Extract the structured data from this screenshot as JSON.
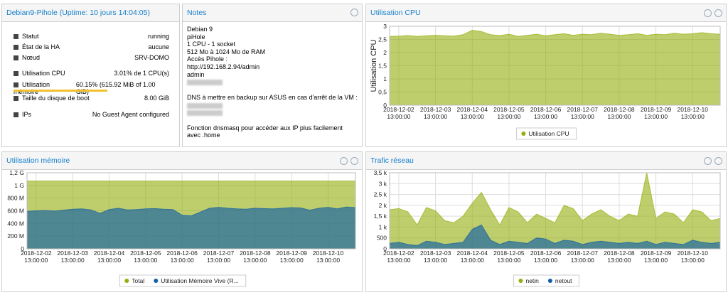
{
  "status": {
    "title": "Debian9-Pihole (Uptime: 10 jours 14:04:05)",
    "rows": [
      {
        "label": "Statut",
        "value": "running"
      },
      {
        "label": "État de la HA",
        "value": "aucune"
      },
      {
        "label": "Nœud",
        "value": "SRV-DOMO"
      },
      {
        "label": "Utilisation CPU",
        "value": "3.01% de 1 CPU(s)"
      },
      {
        "label": "Utilisation mémoire",
        "value": "60.15% (615.92 MiB of 1.00 GiB)"
      },
      {
        "label": "Taille du disque de boot",
        "value": "8.00 GiB"
      },
      {
        "label": "IPs",
        "value": "No Guest Agent configured"
      }
    ],
    "memory_percent": 60.15
  },
  "notes": {
    "title": "Notes",
    "lines": [
      "Debian 9",
      "piHole",
      "1 CPU - 1 socket",
      "512 Mo à 1024 Mo de RAM",
      "Accès Pihole :",
      "http://192.168.2.94/admin",
      "admin",
      "DNS à mettre en backup sur ASUS en cas d'arrêt de la VM :",
      "Fonction dnsmasq pour accéder aux IP plus facilement",
      "avec .home"
    ]
  },
  "chart_data": [
    {
      "type": "area",
      "title": "Utilisation CPU",
      "y_label": "Utilisation CPU",
      "categories": [
        null,
        "2018-12-02 13:00:00",
        null,
        null,
        null,
        "2018-12-03 13:00:00",
        null,
        null,
        null,
        "2018-12-04 13:00:00",
        null,
        null,
        null,
        "2018-12-05 13:00:00",
        null,
        null,
        null,
        "2018-12-06 13:00:00",
        null,
        null,
        null,
        "2018-12-07 13:00:00",
        null,
        null,
        null,
        "2018-12-08 13:00:00",
        null,
        null,
        null,
        "2018-12-09 13:00:00",
        null,
        null,
        null,
        "2018-12-10 13:00:00",
        null,
        null,
        null
      ],
      "series": [
        {
          "name": "Utilisation CPU",
          "color": "#94ae0a",
          "values": [
            2.62,
            2.63,
            2.65,
            2.62,
            2.64,
            2.66,
            2.64,
            2.63,
            2.68,
            2.85,
            2.8,
            2.68,
            2.65,
            2.7,
            2.62,
            2.66,
            2.7,
            2.64,
            2.68,
            2.72,
            2.66,
            2.7,
            2.68,
            2.74,
            2.7,
            2.66,
            2.68,
            2.72,
            2.66,
            2.7,
            2.68,
            2.74,
            2.7,
            2.72,
            2.76,
            2.72,
            2.7
          ]
        }
      ],
      "ylim": [
        0,
        3
      ],
      "yticks": [
        0,
        {
          "value": 0.5,
          "label": "0,5"
        },
        1,
        {
          "value": 1.5,
          "label": "1,5"
        },
        2,
        {
          "value": 2.5,
          "label": "2,5"
        },
        3
      ],
      "grid": true,
      "legend": "bottom"
    },
    {
      "type": "area",
      "title": "Utilisation mémoire",
      "categories": [
        null,
        "2018-12-02 13:00:00",
        null,
        null,
        null,
        "2018-12-03 13:00:00",
        null,
        null,
        null,
        "2018-12-04 13:00:00",
        null,
        null,
        null,
        "2018-12-05 13:00:00",
        null,
        null,
        null,
        "2018-12-06 13:00:00",
        null,
        null,
        null,
        "2018-12-07 13:00:00",
        null,
        null,
        null,
        "2018-12-08 13:00:00",
        null,
        null,
        null,
        "2018-12-09 13:00:00",
        null,
        null,
        null,
        "2018-12-10 13:00:00",
        null,
        null,
        null
      ],
      "series": [
        {
          "name": "Total",
          "color": "#94ae0a",
          "values": [
            1070000000,
            1070000000,
            1070000000,
            1070000000,
            1070000000,
            1070000000,
            1070000000,
            1070000000,
            1070000000,
            1070000000,
            1070000000,
            1070000000,
            1070000000,
            1070000000,
            1070000000,
            1070000000,
            1070000000,
            1070000000,
            1070000000,
            1070000000,
            1070000000,
            1070000000,
            1070000000,
            1070000000,
            1070000000,
            1070000000,
            1070000000,
            1070000000,
            1070000000,
            1070000000,
            1070000000,
            1070000000,
            1070000000,
            1070000000,
            1070000000,
            1070000000,
            1070000000
          ]
        },
        {
          "name": "Utilisation Mémoire Vive (R...",
          "color": "#115fa6",
          "values": [
            590000000,
            600000000,
            605000000,
            595000000,
            610000000,
            625000000,
            630000000,
            615000000,
            560000000,
            620000000,
            640000000,
            615000000,
            620000000,
            630000000,
            635000000,
            625000000,
            620000000,
            530000000,
            520000000,
            580000000,
            640000000,
            655000000,
            640000000,
            630000000,
            625000000,
            640000000,
            635000000,
            630000000,
            640000000,
            650000000,
            645000000,
            610000000,
            640000000,
            655000000,
            630000000,
            660000000,
            650000000
          ]
        }
      ],
      "ylim": [
        0,
        1200000000
      ],
      "yticks": [
        0,
        {
          "value": 200000000,
          "label": "200 M"
        },
        {
          "value": 400000000,
          "label": "400 M"
        },
        {
          "value": 600000000,
          "label": "600 M"
        },
        {
          "value": 800000000,
          "label": "800 M"
        },
        {
          "value": 1000000000,
          "label": "1 G"
        },
        {
          "value": 1200000000,
          "label": "1,2 G"
        }
      ],
      "grid": true,
      "legend": "bottom"
    },
    {
      "type": "area",
      "title": "Trafic réseau",
      "categories": [
        null,
        "2018-12-02 13:00:00",
        null,
        null,
        null,
        "2018-12-03 13:00:00",
        null,
        null,
        null,
        "2018-12-04 13:00:00",
        null,
        null,
        null,
        "2018-12-05 13:00:00",
        null,
        null,
        null,
        "2018-12-06 13:00:00",
        null,
        null,
        null,
        "2018-12-07 13:00:00",
        null,
        null,
        null,
        "2018-12-08 13:00:00",
        null,
        null,
        null,
        "2018-12-09 13:00:00",
        null,
        null,
        null,
        "2018-12-10 13:00:00",
        null,
        null,
        null
      ],
      "series": [
        {
          "name": "netin",
          "color": "#94ae0a",
          "values": [
            1800,
            1850,
            1700,
            1100,
            1900,
            1750,
            1300,
            1200,
            1500,
            2100,
            2600,
            1800,
            1100,
            1900,
            1700,
            1200,
            1600,
            1400,
            1200,
            2000,
            1850,
            1300,
            1600,
            1800,
            1500,
            1300,
            1600,
            1500,
            3500,
            1400,
            1700,
            1600,
            1200,
            1800,
            1700,
            1300,
            1400
          ]
        },
        {
          "name": "netout",
          "color": "#115fa6",
          "values": [
            250,
            300,
            200,
            150,
            350,
            300,
            200,
            250,
            300,
            900,
            1100,
            400,
            200,
            350,
            300,
            250,
            500,
            450,
            250,
            400,
            350,
            200,
            300,
            350,
            300,
            250,
            300,
            250,
            350,
            200,
            300,
            250,
            200,
            400,
            300,
            250,
            300
          ]
        }
      ],
      "ylim": [
        0,
        3500
      ],
      "yticks": [
        0,
        {
          "value": 500,
          "label": "500"
        },
        {
          "value": 1000,
          "label": "1 k"
        },
        {
          "value": 1500,
          "label": "1,5 k"
        },
        {
          "value": 2000,
          "label": "2 k"
        },
        {
          "value": 2500,
          "label": "2,5 k"
        },
        {
          "value": 3000,
          "label": "3 k"
        },
        {
          "value": 3500,
          "label": "3,5 k"
        }
      ],
      "grid": true,
      "legend": "bottom"
    }
  ]
}
